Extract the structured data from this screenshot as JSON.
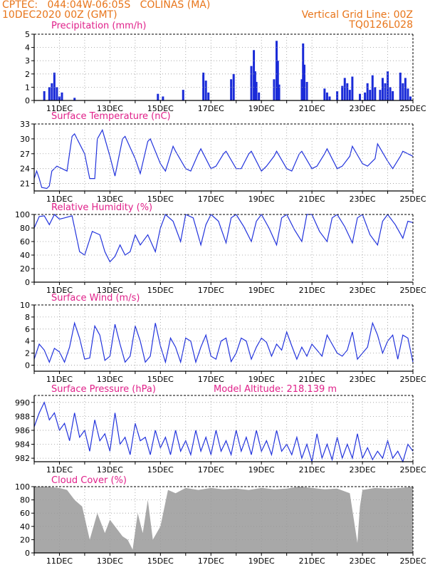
{
  "header": {
    "line1_left": "CPTEC:   044:04W-06:05S   COLINAS (MA)",
    "line2_left": "10DEC2020 00Z (GMT)",
    "line1_right": "Vertical Grid Line: 00Z",
    "line2_right": "TQ0126L028"
  },
  "colors": {
    "header": "#e8751a",
    "title": "#e0218a",
    "line": "#2233dd",
    "bar": "#1a2bd8",
    "cloud": "#a8a8a8",
    "axis": "#000000",
    "grid": "#999999"
  },
  "x_ticks": [
    "11DEC",
    "13DEC",
    "15DEC",
    "17DEC",
    "19DEC",
    "21DEC",
    "23DEC",
    "25DEC"
  ],
  "x_range_days": [
    10,
    25
  ],
  "chart_data": [
    {
      "type": "bar",
      "title": "Precipitation (mm/h)",
      "ylim": [
        0,
        5
      ],
      "yticks": [
        0,
        1,
        2,
        3,
        4,
        5
      ],
      "x": [
        10.4,
        10.6,
        10.7,
        10.8,
        10.9,
        11.0,
        11.1,
        11.6,
        14.9,
        15.1,
        15.9,
        16.7,
        16.8,
        16.9,
        17.8,
        17.9,
        18.6,
        18.7,
        18.75,
        18.8,
        18.9,
        19.5,
        19.6,
        19.65,
        19.7,
        20.6,
        20.65,
        20.7,
        20.8,
        21.5,
        21.6,
        21.7,
        22.0,
        22.2,
        22.3,
        22.4,
        22.5,
        22.6,
        22.9,
        23.1,
        23.2,
        23.3,
        23.4,
        23.5,
        23.7,
        23.8,
        23.9,
        24.0,
        24.1,
        24.2,
        24.5,
        24.6,
        24.7,
        24.8,
        24.9
      ],
      "values": [
        0.7,
        1.0,
        1.3,
        2.1,
        1.0,
        0.3,
        0.6,
        0.2,
        0.5,
        0.3,
        0.8,
        2.1,
        1.5,
        0.6,
        1.6,
        2.0,
        2.6,
        3.8,
        2.2,
        1.4,
        0.6,
        1.6,
        4.5,
        3.0,
        1.2,
        1.6,
        4.3,
        2.7,
        1.4,
        0.9,
        0.6,
        0.3,
        0.7,
        1.1,
        1.7,
        1.3,
        0.8,
        1.8,
        0.5,
        0.6,
        1.3,
        0.8,
        1.9,
        1.0,
        0.8,
        1.7,
        1.3,
        2.2,
        1.0,
        0.7,
        2.1,
        1.3,
        1.7,
        0.9,
        0.3
      ]
    },
    {
      "type": "line",
      "title": "Surface Temperature (nC)",
      "ylim": [
        19.5,
        33
      ],
      "yticks": [
        21,
        24,
        27,
        30,
        33
      ],
      "x": [
        10,
        10.1,
        10.2,
        10.3,
        10.5,
        10.6,
        10.7,
        10.9,
        11.3,
        11.5,
        11.6,
        12.0,
        12.2,
        12.4,
        12.5,
        12.7,
        13.0,
        13.2,
        13.5,
        13.6,
        14.0,
        14.2,
        14.5,
        14.6,
        15.0,
        15.2,
        15.5,
        15.6,
        16.0,
        16.2,
        16.5,
        16.6,
        17.0,
        17.2,
        17.5,
        17.6,
        18.0,
        18.2,
        18.5,
        18.6,
        19.0,
        19.2,
        19.5,
        19.6,
        20.0,
        20.2,
        20.5,
        20.6,
        21.0,
        21.2,
        21.5,
        21.6,
        22.0,
        22.2,
        22.5,
        22.6,
        23.0,
        23.2,
        23.5,
        23.6,
        24.0,
        24.2,
        24.5,
        24.6,
        24.8,
        25.0
      ],
      "values": [
        22.0,
        23.5,
        22.0,
        20.2,
        20.0,
        20.5,
        23.5,
        24.5,
        23.5,
        30.5,
        31.0,
        27.0,
        22.0,
        22.0,
        30.0,
        31.8,
        26.5,
        22.5,
        30.0,
        30.5,
        26.0,
        23.0,
        29.5,
        30.0,
        25.0,
        23.5,
        28.5,
        27.5,
        24.0,
        23.5,
        27.0,
        28.0,
        24.0,
        24.5,
        27.0,
        27.5,
        24.0,
        24.0,
        27.0,
        27.5,
        23.5,
        24.5,
        26.5,
        27.5,
        24.0,
        23.5,
        27.0,
        27.5,
        24.0,
        24.5,
        27.0,
        28.0,
        24.0,
        24.5,
        26.5,
        28.5,
        25.0,
        24.5,
        26.0,
        29.0,
        25.5,
        24.0,
        26.5,
        27.5,
        27.0,
        26.5
      ]
    },
    {
      "type": "line",
      "title": "Relative Humidity (%)",
      "ylim": [
        0,
        100
      ],
      "yticks": [
        0,
        20,
        40,
        60,
        80,
        100
      ],
      "x": [
        10,
        10.2,
        10.4,
        10.6,
        10.8,
        11.0,
        11.2,
        11.5,
        11.8,
        12.0,
        12.3,
        12.6,
        12.8,
        13.0,
        13.2,
        13.4,
        13.6,
        13.8,
        14.0,
        14.2,
        14.5,
        14.8,
        15.0,
        15.2,
        15.5,
        15.8,
        16.0,
        16.3,
        16.6,
        16.8,
        17.0,
        17.3,
        17.6,
        17.8,
        18.0,
        18.3,
        18.6,
        18.8,
        19.0,
        19.3,
        19.6,
        19.8,
        20.0,
        20.3,
        20.6,
        20.8,
        21.0,
        21.3,
        21.6,
        21.8,
        22.0,
        22.3,
        22.6,
        22.8,
        23.0,
        23.3,
        23.6,
        23.8,
        24.0,
        24.3,
        24.6,
        24.8,
        25.0
      ],
      "values": [
        80,
        97,
        98,
        85,
        100,
        93,
        95,
        98,
        45,
        40,
        75,
        70,
        45,
        30,
        38,
        55,
        40,
        45,
        70,
        55,
        70,
        45,
        80,
        100,
        90,
        60,
        100,
        95,
        55,
        85,
        100,
        90,
        58,
        95,
        100,
        82,
        60,
        90,
        100,
        80,
        55,
        95,
        100,
        78,
        60,
        100,
        100,
        75,
        60,
        95,
        100,
        82,
        58,
        95,
        100,
        70,
        55,
        90,
        100,
        85,
        65,
        90,
        88
      ]
    },
    {
      "type": "line",
      "title": "Surface Wind (m/s)",
      "ylim": [
        -1,
        10
      ],
      "yticks": [
        0,
        2,
        4,
        6,
        8,
        10
      ],
      "x": [
        10,
        10.2,
        10.4,
        10.6,
        10.8,
        11.0,
        11.2,
        11.4,
        11.6,
        11.8,
        12.0,
        12.2,
        12.4,
        12.6,
        12.8,
        13.0,
        13.2,
        13.4,
        13.6,
        13.8,
        14.0,
        14.2,
        14.4,
        14.6,
        14.8,
        15.0,
        15.2,
        15.4,
        15.6,
        15.8,
        16.0,
        16.2,
        16.4,
        16.6,
        16.8,
        17.0,
        17.2,
        17.4,
        17.6,
        17.8,
        18.0,
        18.2,
        18.4,
        18.6,
        18.8,
        19.0,
        19.2,
        19.4,
        19.6,
        19.8,
        20.0,
        20.2,
        20.4,
        20.6,
        20.8,
        21.0,
        21.2,
        21.4,
        21.6,
        21.8,
        22.0,
        22.2,
        22.4,
        22.6,
        22.8,
        23.0,
        23.2,
        23.4,
        23.6,
        23.8,
        24.0,
        24.2,
        24.4,
        24.6,
        24.8,
        25.0
      ],
      "values": [
        1.0,
        3.5,
        2.5,
        0.5,
        2.8,
        2.2,
        0.5,
        3.0,
        7.0,
        4.5,
        1.0,
        1.2,
        6.5,
        5.0,
        0.8,
        1.5,
        6.8,
        3.5,
        0.5,
        1.5,
        6.5,
        4.0,
        0.5,
        1.5,
        7.0,
        3.2,
        0.5,
        4.5,
        3.0,
        0.5,
        4.5,
        4.0,
        0.5,
        3.0,
        5.0,
        1.5,
        1.0,
        4.0,
        4.5,
        0.6,
        2.0,
        4.5,
        4.0,
        1.0,
        3.0,
        4.5,
        3.8,
        1.5,
        3.5,
        2.5,
        5.5,
        3.2,
        1.0,
        3.0,
        1.5,
        3.5,
        2.5,
        1.5,
        5.0,
        3.5,
        2.0,
        1.5,
        2.5,
        5.5,
        1.0,
        2.0,
        3.0,
        7.0,
        5.0,
        2.0,
        4.0,
        5.0,
        1.0,
        5.0,
        4.5,
        0.5
      ]
    },
    {
      "type": "line",
      "title": "Surface Pressure (hPa)",
      "annotation": "Model Altitude: 218.139  m",
      "ylim": [
        981.5,
        991
      ],
      "yticks": [
        982,
        984,
        986,
        988,
        990
      ],
      "x": [
        10,
        10.2,
        10.4,
        10.6,
        10.8,
        11.0,
        11.2,
        11.4,
        11.6,
        11.8,
        12.0,
        12.2,
        12.4,
        12.6,
        12.8,
        13.0,
        13.2,
        13.4,
        13.6,
        13.8,
        14.0,
        14.2,
        14.4,
        14.6,
        14.8,
        15.0,
        15.2,
        15.4,
        15.6,
        15.8,
        16.0,
        16.2,
        16.4,
        16.6,
        16.8,
        17.0,
        17.2,
        17.4,
        17.6,
        17.8,
        18.0,
        18.2,
        18.4,
        18.6,
        18.8,
        19.0,
        19.2,
        19.4,
        19.6,
        19.8,
        20.0,
        20.2,
        20.4,
        20.6,
        20.8,
        21.0,
        21.2,
        21.4,
        21.6,
        21.8,
        22.0,
        22.2,
        22.4,
        22.6,
        22.8,
        23.0,
        23.2,
        23.4,
        23.6,
        23.8,
        24.0,
        24.2,
        24.4,
        24.6,
        24.8,
        25.0
      ],
      "values": [
        986.5,
        988.5,
        990.0,
        987.5,
        988.5,
        986.0,
        987.0,
        984.5,
        988.5,
        985.0,
        986.0,
        983.0,
        987.5,
        984.5,
        985.5,
        983.0,
        988.5,
        984.0,
        985.0,
        982.5,
        987.0,
        984.5,
        985.0,
        982.5,
        986.0,
        983.5,
        985.0,
        982.5,
        986.0,
        983.0,
        984.5,
        982.5,
        986.0,
        983.0,
        985.0,
        982.5,
        986.0,
        983.0,
        984.5,
        982.5,
        986.0,
        983.0,
        985.0,
        982.5,
        986.0,
        983.0,
        984.5,
        982.5,
        986.0,
        983.0,
        984.0,
        982.5,
        985.0,
        982.0,
        984.0,
        981.5,
        985.5,
        982.0,
        984.0,
        981.8,
        985.0,
        982.0,
        984.0,
        982.0,
        985.5,
        982.0,
        983.5,
        981.8,
        983.0,
        982.0,
        984.5,
        982.0,
        983.0,
        981.5,
        984.0,
        983.0
      ]
    },
    {
      "type": "area",
      "title": "Cloud Cover (%)",
      "ylim": [
        0,
        100
      ],
      "yticks": [
        0,
        20,
        40,
        60,
        80,
        100
      ],
      "x": [
        10,
        10.5,
        11.0,
        11.3,
        11.6,
        11.9,
        12.2,
        12.5,
        12.8,
        13.0,
        13.2,
        13.5,
        13.7,
        13.9,
        14.1,
        14.3,
        14.5,
        14.7,
        15.0,
        15.3,
        15.6,
        16.0,
        16.5,
        17.0,
        17.5,
        18.0,
        18.5,
        19.0,
        19.5,
        20.0,
        20.5,
        21.0,
        21.5,
        22.0,
        22.5,
        22.7,
        22.8,
        22.9,
        23.0,
        23.5,
        24.0,
        24.5,
        25.0
      ],
      "values": [
        100,
        100,
        98,
        95,
        80,
        70,
        20,
        60,
        30,
        50,
        40,
        25,
        20,
        5,
        60,
        30,
        80,
        20,
        40,
        95,
        90,
        98,
        95,
        98,
        96,
        97,
        95,
        98,
        96,
        97,
        100,
        98,
        96,
        97,
        90,
        40,
        15,
        70,
        95,
        98,
        97,
        98,
        100
      ]
    }
  ]
}
